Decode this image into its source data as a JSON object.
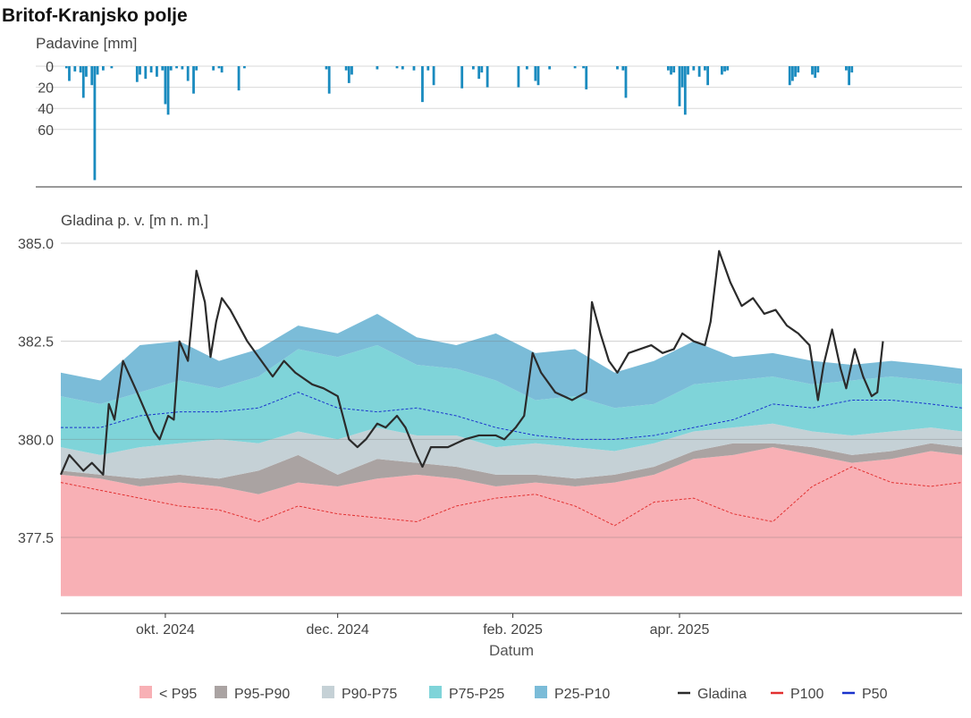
{
  "chart_data": {
    "type": "area",
    "title": "Britof-Kranjsko polje",
    "rain_panel": {
      "ylabel": "Padavine [mm]",
      "yticks": [
        0,
        20,
        40,
        60
      ],
      "ylim": [
        0,
        110
      ],
      "color": "#1a8bbf",
      "bars": [
        [
          "2024-08-27",
          2
        ],
        [
          "2024-08-28",
          14
        ],
        [
          "2024-08-30",
          5
        ],
        [
          "2024-09-01",
          6
        ],
        [
          "2024-09-02",
          30
        ],
        [
          "2024-09-03",
          10
        ],
        [
          "2024-09-05",
          18
        ],
        [
          "2024-09-06",
          108
        ],
        [
          "2024-09-07",
          8
        ],
        [
          "2024-09-09",
          4
        ],
        [
          "2024-09-12",
          2
        ],
        [
          "2024-09-21",
          15
        ],
        [
          "2024-09-22",
          8
        ],
        [
          "2024-09-24",
          12
        ],
        [
          "2024-09-26",
          6
        ],
        [
          "2024-09-28",
          10
        ],
        [
          "2024-09-30",
          4
        ],
        [
          "2024-10-01",
          36
        ],
        [
          "2024-10-02",
          46
        ],
        [
          "2024-10-03",
          4
        ],
        [
          "2024-10-05",
          2
        ],
        [
          "2024-10-07",
          3
        ],
        [
          "2024-10-09",
          14
        ],
        [
          "2024-10-11",
          26
        ],
        [
          "2024-10-12",
          4
        ],
        [
          "2024-10-18",
          4
        ],
        [
          "2024-10-20",
          2
        ],
        [
          "2024-10-21",
          6
        ],
        [
          "2024-10-27",
          23
        ],
        [
          "2024-10-29",
          2
        ],
        [
          "2024-11-27",
          3
        ],
        [
          "2024-11-28",
          26
        ],
        [
          "2024-12-04",
          4
        ],
        [
          "2024-12-05",
          16
        ],
        [
          "2024-12-06",
          8
        ],
        [
          "2024-12-15",
          3
        ],
        [
          "2024-12-22",
          2
        ],
        [
          "2024-12-24",
          3
        ],
        [
          "2024-12-28",
          4
        ],
        [
          "2024-12-31",
          34
        ],
        [
          "2025-01-02",
          4
        ],
        [
          "2025-01-04",
          18
        ],
        [
          "2025-01-14",
          21
        ],
        [
          "2025-01-18",
          3
        ],
        [
          "2025-01-20",
          12
        ],
        [
          "2025-01-21",
          6
        ],
        [
          "2025-01-23",
          20
        ],
        [
          "2025-02-03",
          20
        ],
        [
          "2025-02-06",
          3
        ],
        [
          "2025-02-09",
          14
        ],
        [
          "2025-02-10",
          18
        ],
        [
          "2025-02-14",
          3
        ],
        [
          "2025-02-23",
          2
        ],
        [
          "2025-02-26",
          2
        ],
        [
          "2025-02-27",
          22
        ],
        [
          "2025-03-10",
          3
        ],
        [
          "2025-03-12",
          4
        ],
        [
          "2025-03-13",
          30
        ],
        [
          "2025-03-28",
          4
        ],
        [
          "2025-03-29",
          8
        ],
        [
          "2025-03-30",
          6
        ],
        [
          "2025-04-01",
          38
        ],
        [
          "2025-04-02",
          20
        ],
        [
          "2025-04-03",
          46
        ],
        [
          "2025-04-04",
          8
        ],
        [
          "2025-04-06",
          4
        ],
        [
          "2025-04-08",
          10
        ],
        [
          "2025-04-10",
          4
        ],
        [
          "2025-04-11",
          18
        ],
        [
          "2025-04-16",
          8
        ],
        [
          "2025-04-17",
          5
        ],
        [
          "2025-04-18",
          4
        ],
        [
          "2025-05-10",
          18
        ],
        [
          "2025-05-11",
          14
        ],
        [
          "2025-05-12",
          10
        ],
        [
          "2025-05-13",
          6
        ],
        [
          "2025-05-18",
          8
        ],
        [
          "2025-05-19",
          11
        ],
        [
          "2025-05-20",
          6
        ],
        [
          "2025-05-30",
          4
        ],
        [
          "2025-05-31",
          18
        ],
        [
          "2025-06-01",
          6
        ]
      ]
    },
    "level_panel": {
      "ylabel": "Gladina p. v. [m n. m.]",
      "yticks": [
        377.5,
        380.0,
        382.5,
        385.0
      ],
      "ytick_labels": [
        "377.5",
        "380.0",
        "382.5",
        "385.0"
      ],
      "ylim": [
        375.5,
        386.0
      ],
      "band_floor": 376.0,
      "xlim": [
        "2024-08-25",
        "2025-07-10"
      ],
      "xlabel": "Datum",
      "xticks": [
        "2024-10-01",
        "2024-12-01",
        "2025-02-01",
        "2025-04-01"
      ],
      "xtick_labels": [
        "okt. 2024",
        "dec. 2024",
        "feb. 2025",
        "apr. 2025"
      ],
      "band_dates": [
        "2024-08-25",
        "2024-09-08",
        "2024-09-22",
        "2024-10-06",
        "2024-10-20",
        "2024-11-03",
        "2024-11-17",
        "2024-12-01",
        "2024-12-15",
        "2024-12-29",
        "2025-01-12",
        "2025-01-26",
        "2025-02-09",
        "2025-02-23",
        "2025-03-09",
        "2025-03-23",
        "2025-04-06",
        "2025-04-20",
        "2025-05-04",
        "2025-05-18",
        "2025-06-01",
        "2025-06-15",
        "2025-06-29",
        "2025-07-10"
      ],
      "bands": [
        {
          "name": "< P95",
          "color": "#f8b0b5",
          "upper": [
            379.1,
            379.0,
            378.8,
            378.9,
            378.8,
            378.6,
            378.9,
            378.8,
            379.0,
            379.1,
            379.0,
            378.8,
            378.9,
            378.8,
            378.9,
            379.1,
            379.5,
            379.6,
            379.8,
            379.6,
            379.4,
            379.5,
            379.7,
            379.6
          ]
        },
        {
          "name": "P95-P90",
          "color": "#aaa3a2",
          "upper": [
            379.2,
            379.1,
            379.0,
            379.1,
            379.0,
            379.2,
            379.6,
            379.1,
            379.5,
            379.4,
            379.3,
            379.1,
            379.1,
            379.0,
            379.1,
            379.3,
            379.7,
            379.9,
            379.9,
            379.8,
            379.6,
            379.7,
            379.9,
            379.8
          ]
        },
        {
          "name": "P90-P75",
          "color": "#c5d1d6",
          "upper": [
            379.8,
            379.6,
            379.8,
            379.9,
            380.0,
            379.9,
            380.2,
            380.0,
            380.3,
            380.1,
            380.1,
            379.8,
            379.9,
            379.8,
            379.7,
            379.9,
            380.2,
            380.3,
            380.4,
            380.2,
            380.1,
            380.2,
            380.3,
            380.2
          ]
        },
        {
          "name": "P75-P25",
          "color": "#7fd4d9",
          "upper": [
            381.1,
            380.9,
            381.2,
            381.5,
            381.3,
            381.6,
            382.3,
            382.1,
            382.4,
            381.9,
            381.8,
            381.5,
            381.0,
            381.1,
            380.8,
            380.9,
            381.4,
            381.5,
            381.6,
            381.4,
            381.5,
            381.6,
            381.5,
            381.4
          ]
        },
        {
          "name": "P25-P10",
          "color": "#7bbcd8",
          "upper": [
            381.7,
            381.5,
            382.4,
            382.5,
            382.0,
            382.3,
            382.9,
            382.7,
            383.2,
            382.6,
            382.4,
            382.7,
            382.2,
            382.3,
            381.7,
            382.0,
            382.5,
            382.1,
            382.2,
            382.0,
            381.9,
            382.0,
            381.9,
            381.8
          ]
        }
      ],
      "p100_color": "#e23030",
      "p100": [
        378.9,
        378.7,
        378.5,
        378.3,
        378.2,
        377.9,
        378.3,
        378.1,
        378.0,
        377.9,
        378.3,
        378.5,
        378.6,
        378.3,
        377.8,
        378.4,
        378.5,
        378.1,
        377.9,
        378.8,
        379.3,
        378.9,
        378.8,
        378.9
      ],
      "p50_color": "#1a33cc",
      "p50": [
        380.3,
        380.3,
        380.6,
        380.7,
        380.7,
        380.8,
        381.2,
        380.8,
        380.7,
        380.8,
        380.6,
        380.3,
        380.1,
        380.0,
        380.0,
        380.1,
        380.3,
        380.5,
        380.9,
        380.8,
        381.0,
        381.0,
        380.9,
        380.8
      ],
      "gladina_color": "#2b2b2b",
      "gladina": [
        [
          "2024-08-25",
          379.1
        ],
        [
          "2024-08-28",
          379.6
        ],
        [
          "2024-09-02",
          379.2
        ],
        [
          "2024-09-05",
          379.4
        ],
        [
          "2024-09-09",
          379.1
        ],
        [
          "2024-09-11",
          380.9
        ],
        [
          "2024-09-13",
          380.5
        ],
        [
          "2024-09-16",
          382.0
        ],
        [
          "2024-09-21",
          381.2
        ],
        [
          "2024-09-27",
          380.2
        ],
        [
          "2024-09-29",
          380.0
        ],
        [
          "2024-10-02",
          380.6
        ],
        [
          "2024-10-04",
          380.5
        ],
        [
          "2024-10-06",
          382.5
        ],
        [
          "2024-10-09",
          382.0
        ],
        [
          "2024-10-12",
          384.3
        ],
        [
          "2024-10-15",
          383.5
        ],
        [
          "2024-10-17",
          382.1
        ],
        [
          "2024-10-19",
          383.0
        ],
        [
          "2024-10-21",
          383.6
        ],
        [
          "2024-10-24",
          383.3
        ],
        [
          "2024-10-30",
          382.5
        ],
        [
          "2024-11-03",
          382.1
        ],
        [
          "2024-11-08",
          381.6
        ],
        [
          "2024-11-12",
          382.0
        ],
        [
          "2024-11-16",
          381.7
        ],
        [
          "2024-11-22",
          381.4
        ],
        [
          "2024-11-26",
          381.3
        ],
        [
          "2024-12-01",
          381.1
        ],
        [
          "2024-12-05",
          380.0
        ],
        [
          "2024-12-08",
          379.8
        ],
        [
          "2024-12-11",
          380.0
        ],
        [
          "2024-12-15",
          380.4
        ],
        [
          "2024-12-18",
          380.3
        ],
        [
          "2024-12-22",
          380.6
        ],
        [
          "2024-12-25",
          380.3
        ],
        [
          "2024-12-29",
          379.6
        ],
        [
          "2024-12-31",
          379.3
        ],
        [
          "2025-01-03",
          379.8
        ],
        [
          "2025-01-09",
          379.8
        ],
        [
          "2025-01-15",
          380.0
        ],
        [
          "2025-01-20",
          380.1
        ],
        [
          "2025-01-26",
          380.1
        ],
        [
          "2025-01-29",
          380.0
        ],
        [
          "2025-02-02",
          380.3
        ],
        [
          "2025-02-05",
          380.6
        ],
        [
          "2025-02-08",
          382.2
        ],
        [
          "2025-02-11",
          381.7
        ],
        [
          "2025-02-16",
          381.2
        ],
        [
          "2025-02-22",
          381.0
        ],
        [
          "2025-02-27",
          381.2
        ],
        [
          "2025-03-01",
          383.5
        ],
        [
          "2025-03-04",
          382.7
        ],
        [
          "2025-03-07",
          382.0
        ],
        [
          "2025-03-10",
          381.7
        ],
        [
          "2025-03-14",
          382.2
        ],
        [
          "2025-03-18",
          382.3
        ],
        [
          "2025-03-22",
          382.4
        ],
        [
          "2025-03-26",
          382.2
        ],
        [
          "2025-03-30",
          382.3
        ],
        [
          "2025-04-02",
          382.7
        ],
        [
          "2025-04-06",
          382.5
        ],
        [
          "2025-04-10",
          382.4
        ],
        [
          "2025-04-12",
          383.0
        ],
        [
          "2025-04-15",
          384.8
        ],
        [
          "2025-04-19",
          384.0
        ],
        [
          "2025-04-23",
          383.4
        ],
        [
          "2025-04-27",
          383.6
        ],
        [
          "2025-05-01",
          383.2
        ],
        [
          "2025-05-05",
          383.3
        ],
        [
          "2025-05-09",
          382.9
        ],
        [
          "2025-05-13",
          382.7
        ],
        [
          "2025-05-17",
          382.4
        ],
        [
          "2025-05-20",
          381.0
        ],
        [
          "2025-05-22",
          381.9
        ],
        [
          "2025-05-25",
          382.8
        ],
        [
          "2025-05-28",
          381.8
        ],
        [
          "2025-05-30",
          381.3
        ],
        [
          "2025-06-02",
          382.3
        ],
        [
          "2025-06-05",
          381.6
        ],
        [
          "2025-06-08",
          381.1
        ],
        [
          "2025-06-10",
          381.2
        ],
        [
          "2025-06-12",
          382.5
        ]
      ]
    },
    "legend": {
      "placement": "bottom",
      "items": [
        {
          "label": "< P95",
          "kind": "box",
          "color": "#f8b0b5"
        },
        {
          "label": "P95-P90",
          "kind": "box",
          "color": "#aaa3a2"
        },
        {
          "label": "P90-P75",
          "kind": "box",
          "color": "#c5d1d6"
        },
        {
          "label": "P75-P25",
          "kind": "box",
          "color": "#7fd4d9"
        },
        {
          "label": "P25-P10",
          "kind": "box",
          "color": "#7bbcd8"
        },
        {
          "label": "Gladina",
          "kind": "line",
          "color": "#2b2b2b"
        },
        {
          "label": "P100",
          "kind": "line",
          "color": "#e23030"
        },
        {
          "label": "P50",
          "kind": "line",
          "color": "#1a33cc"
        }
      ]
    }
  }
}
